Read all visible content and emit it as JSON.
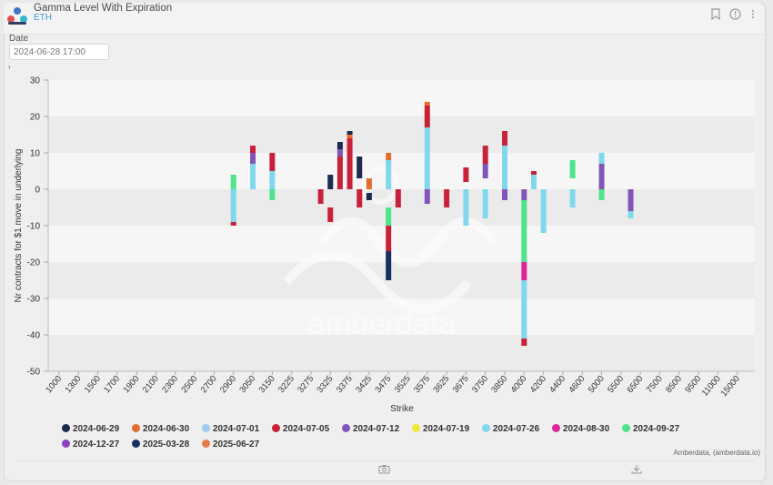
{
  "header": {
    "title": "Gamma Level With Expiration",
    "subtitle": "ETH",
    "bookmark_icon": "bookmark-icon",
    "info_icon": "info-icon",
    "menu_icon": "more-vertical-icon"
  },
  "filters": {
    "date_label": "Date",
    "date_value": "2024-06-28 17:00"
  },
  "footer": {
    "attribution": "Amberdata, (amberdata.io)",
    "camera_icon": "camera-icon",
    "download_icon": "download-icon"
  },
  "watermark": "amberdata",
  "chart_data": {
    "type": "bar",
    "stacked": true,
    "xlabel": "Strike",
    "ylabel": "Nr contracts for $1 move in underlying",
    "ylim": [
      -50,
      30
    ],
    "yticks": [
      30,
      20,
      10,
      0,
      -10,
      -20,
      -30,
      -40,
      -50
    ],
    "grid": "horizontal bands",
    "legend_position": "bottom",
    "x_tick_labels": [
      "1000",
      "1300",
      "1500",
      "1700",
      "1900",
      "2100",
      "2300",
      "2500",
      "2700",
      "2900",
      "3050",
      "3150",
      "3225",
      "3275",
      "3325",
      "3375",
      "3425",
      "3475",
      "3525",
      "3575",
      "3625",
      "3675",
      "3750",
      "3850",
      "4000",
      "4200",
      "4400",
      "4600",
      "5000",
      "5500",
      "6500",
      "7500",
      "8500",
      "9500",
      "11000",
      "15000"
    ],
    "series": [
      {
        "name": "2024-06-29",
        "color": "#1b2a4e"
      },
      {
        "name": "2024-06-30",
        "color": "#e36c2f"
      },
      {
        "name": "2024-07-01",
        "color": "#9fcbf2"
      },
      {
        "name": "2024-07-05",
        "color": "#c8213a"
      },
      {
        "name": "2024-07-12",
        "color": "#8256b8"
      },
      {
        "name": "2024-07-19",
        "color": "#f5e53b"
      },
      {
        "name": "2024-07-26",
        "color": "#7fd8ec"
      },
      {
        "name": "2024-08-30",
        "color": "#e0249a"
      },
      {
        "name": "2024-09-27",
        "color": "#4fe38a"
      },
      {
        "name": "2024-12-27",
        "color": "#8b3fc1"
      },
      {
        "name": "2025-03-28",
        "color": "#17305f"
      },
      {
        "name": "2025-06-27",
        "color": "#e37b4b"
      }
    ],
    "bars": [
      {
        "strike": "2900",
        "segments": [
          {
            "series": "2024-09-27",
            "from": 0,
            "to": 4
          },
          {
            "series": "2024-07-26",
            "from": 0,
            "to": -9
          },
          {
            "series": "2024-07-05",
            "from": -9,
            "to": -10
          }
        ]
      },
      {
        "strike": "3050",
        "segments": [
          {
            "series": "2024-07-26",
            "from": 0,
            "to": 7
          },
          {
            "series": "2024-07-12",
            "from": 7,
            "to": 10
          },
          {
            "series": "2024-07-05",
            "from": 10,
            "to": 12
          }
        ]
      },
      {
        "strike": "3150",
        "segments": [
          {
            "series": "2024-07-26",
            "from": 0,
            "to": 5
          },
          {
            "series": "2024-07-05",
            "from": 5,
            "to": 10
          },
          {
            "series": "2024-09-27",
            "from": 0,
            "to": -3
          }
        ]
      },
      {
        "strike": "3300",
        "segments": [
          {
            "series": "2024-07-05",
            "from": 0,
            "to": -4
          }
        ]
      },
      {
        "strike": "3325",
        "segments": [
          {
            "series": "2024-06-29",
            "from": 0,
            "to": 4
          },
          {
            "series": "2024-07-05",
            "from": -5,
            "to": -9
          }
        ]
      },
      {
        "strike": "3350",
        "segments": [
          {
            "series": "2024-07-05",
            "from": 0,
            "to": 9
          },
          {
            "series": "2024-07-12",
            "from": 9,
            "to": 11
          },
          {
            "series": "2024-06-29",
            "from": 11,
            "to": 13
          }
        ]
      },
      {
        "strike": "3375",
        "segments": [
          {
            "series": "2024-07-05",
            "from": 0,
            "to": 14
          },
          {
            "series": "2024-06-30",
            "from": 14,
            "to": 15
          },
          {
            "series": "2024-06-29",
            "from": 15,
            "to": 16
          }
        ]
      },
      {
        "strike": "3400",
        "segments": [
          {
            "series": "2024-06-29",
            "from": 3,
            "to": 9
          },
          {
            "series": "2024-07-05",
            "from": 0,
            "to": -5
          }
        ]
      },
      {
        "strike": "3425",
        "segments": [
          {
            "series": "2024-06-30",
            "from": 0,
            "to": 3
          },
          {
            "series": "2024-06-29",
            "from": -1,
            "to": -3
          }
        ]
      },
      {
        "strike": "3475",
        "segments": [
          {
            "series": "2024-07-26",
            "from": 0,
            "to": 8
          },
          {
            "series": "2024-06-30",
            "from": 8,
            "to": 10
          },
          {
            "series": "2024-09-27",
            "from": -5,
            "to": -10
          },
          {
            "series": "2024-07-05",
            "from": -10,
            "to": -17
          },
          {
            "series": "2025-03-28",
            "from": -17,
            "to": -25
          }
        ]
      },
      {
        "strike": "3500",
        "segments": [
          {
            "series": "2024-07-05",
            "from": 0,
            "to": -5
          }
        ]
      },
      {
        "strike": "3575",
        "segments": [
          {
            "series": "2024-07-26",
            "from": 0,
            "to": 17
          },
          {
            "series": "2024-07-05",
            "from": 17,
            "to": 23
          },
          {
            "series": "2024-06-30",
            "from": 23,
            "to": 24
          },
          {
            "series": "2024-07-12",
            "from": 0,
            "to": -4
          }
        ]
      },
      {
        "strike": "3625",
        "segments": [
          {
            "series": "2024-07-05",
            "from": 0,
            "to": -5
          }
        ]
      },
      {
        "strike": "3675",
        "segments": [
          {
            "series": "2024-07-26",
            "from": 0,
            "to": -10
          },
          {
            "series": "2024-07-05",
            "from": 2,
            "to": 6
          }
        ]
      },
      {
        "strike": "3750",
        "segments": [
          {
            "series": "2024-07-26",
            "from": 0,
            "to": -8
          },
          {
            "series": "2024-07-12",
            "from": 3,
            "to": 7
          },
          {
            "series": "2024-07-05",
            "from": 7,
            "to": 12
          }
        ]
      },
      {
        "strike": "3850",
        "segments": [
          {
            "series": "2024-07-26",
            "from": 0,
            "to": 12
          },
          {
            "series": "2024-07-05",
            "from": 12,
            "to": 16
          },
          {
            "series": "2024-07-12",
            "from": 0,
            "to": -3
          }
        ]
      },
      {
        "strike": "4000",
        "segments": [
          {
            "series": "2024-07-12",
            "from": 0,
            "to": -3
          },
          {
            "series": "2024-09-27",
            "from": -3,
            "to": -20
          },
          {
            "series": "2024-08-30",
            "from": -20,
            "to": -25
          },
          {
            "series": "2024-07-26",
            "from": -25,
            "to": -41
          },
          {
            "series": "2024-07-05",
            "from": -41,
            "to": -43
          }
        ]
      },
      {
        "strike": "4100",
        "segments": [
          {
            "series": "2024-07-26",
            "from": 0,
            "to": 4
          },
          {
            "series": "2024-07-05",
            "from": 4,
            "to": 5
          }
        ]
      },
      {
        "strike": "4200",
        "segments": [
          {
            "series": "2024-07-26",
            "from": 0,
            "to": -12
          }
        ]
      },
      {
        "strike": "4500",
        "segments": [
          {
            "series": "2024-09-27",
            "from": 3,
            "to": 8
          },
          {
            "series": "2024-07-26",
            "from": 0,
            "to": -5
          }
        ]
      },
      {
        "strike": "5000",
        "segments": [
          {
            "series": "2024-07-26",
            "from": 7,
            "to": 10
          },
          {
            "series": "2024-07-12",
            "from": 0,
            "to": 7
          },
          {
            "series": "2024-09-27",
            "from": 0,
            "to": -3
          }
        ]
      },
      {
        "strike": "6000",
        "segments": [
          {
            "series": "2024-07-12",
            "from": 0,
            "to": -6
          },
          {
            "series": "2024-07-26",
            "from": -6,
            "to": -8
          }
        ]
      }
    ]
  }
}
